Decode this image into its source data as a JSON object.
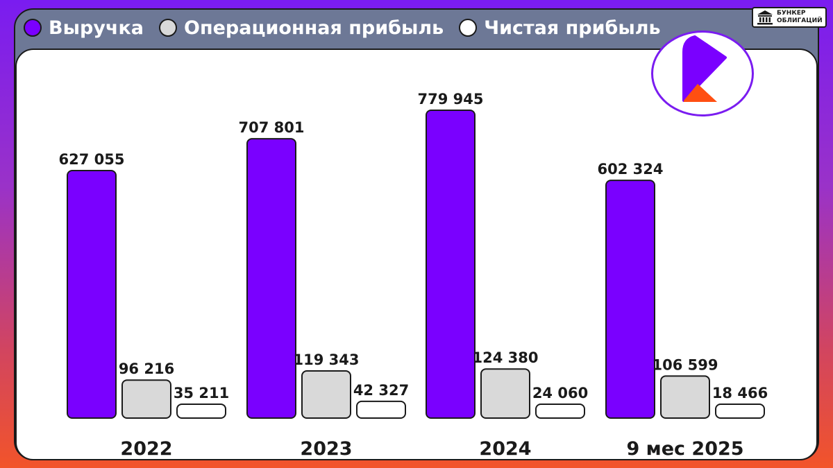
{
  "legend": [
    {
      "label": "Выручка",
      "color": "#7a00ff"
    },
    {
      "label": "Операционная прибыль",
      "color": "#d9d9d9"
    },
    {
      "label": "Чистая прибыль",
      "color": "#ffffff"
    }
  ],
  "brand": {
    "line1": "БУНКЕР",
    "line2": "ОБЛИГАЦИЙ",
    "icon": "bank-building-icon"
  },
  "logo": {
    "icon": "company-logo-icon",
    "primary_color": "#7a00ff",
    "accent_color": "#ff4f12"
  },
  "chart_data": {
    "type": "bar",
    "categories": [
      "2022",
      "2023",
      "2024",
      "9 мес 2025"
    ],
    "series": [
      {
        "name": "Выручка",
        "color": "#7a00ff",
        "values": [
          627055,
          707801,
          779945,
          602324
        ],
        "labels": [
          "627 055",
          "707 801",
          "779 945",
          "602 324"
        ]
      },
      {
        "name": "Операционная прибыль",
        "color": "#d9d9d9",
        "values": [
          96216,
          119343,
          124380,
          106599
        ],
        "labels": [
          "96 216",
          "119 343",
          "124 380",
          "106 599"
        ]
      },
      {
        "name": "Чистая прибыль",
        "color": "#ffffff",
        "values": [
          35211,
          42327,
          24060,
          18466
        ],
        "labels": [
          "35 211",
          "42 327",
          "24 060",
          "18 466"
        ]
      }
    ],
    "ylim": [
      0,
      800000
    ],
    "grid": false,
    "legend_position": "top-left"
  }
}
